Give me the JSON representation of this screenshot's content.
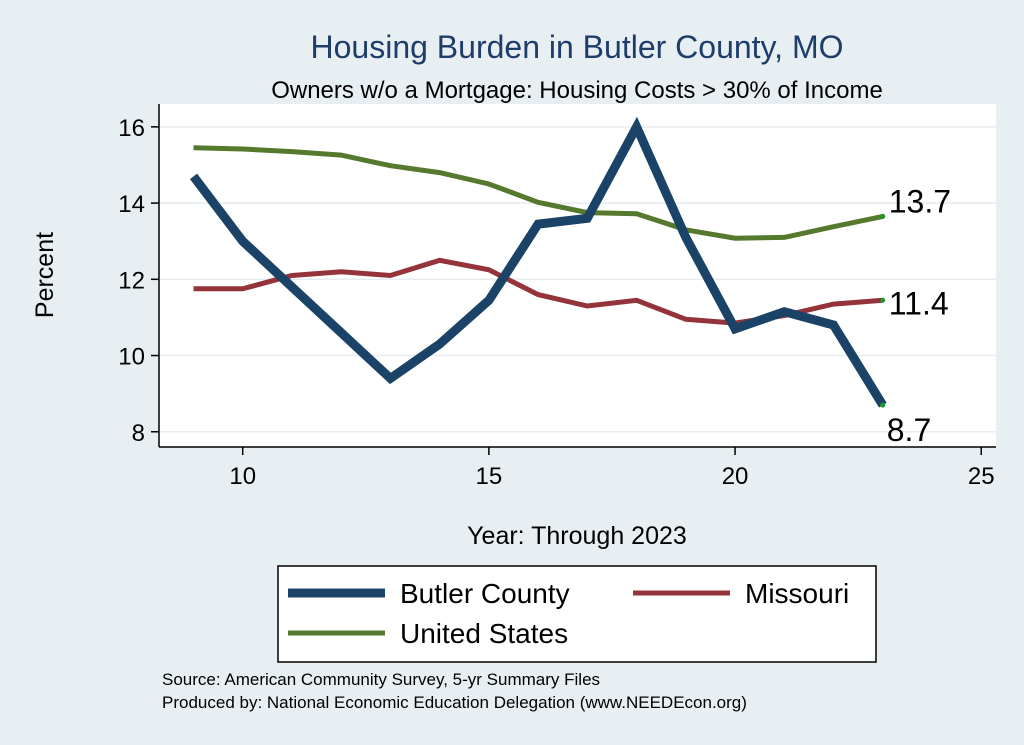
{
  "chart_data": {
    "type": "line",
    "title": "Housing Burden in Butler County, MO",
    "subtitle": "Owners w/o a Mortgage: Housing Costs > 30% of Income",
    "xlabel": "Year: Through 2023",
    "ylabel": "Percent",
    "xlim": [
      8.3,
      25.3
    ],
    "ylim": [
      7.6,
      16.6
    ],
    "xticks": [
      10,
      15,
      20,
      25
    ],
    "yticks": [
      8,
      10,
      12,
      14,
      16
    ],
    "grid": true,
    "x": [
      9,
      10,
      11,
      12,
      13,
      14,
      15,
      16,
      17,
      18,
      19,
      20,
      21,
      22,
      23
    ],
    "series": [
      {
        "name": "Butler County",
        "color": "#1b4368",
        "width": 9,
        "values": [
          14.7,
          13.0,
          11.8,
          10.6,
          9.4,
          10.3,
          11.45,
          13.45,
          13.6,
          16.0,
          13.1,
          10.7,
          11.15,
          10.8,
          8.7
        ],
        "end_label": "8.7"
      },
      {
        "name": "Missouri",
        "color": "#943339",
        "width": 5,
        "values": [
          11.75,
          11.75,
          12.1,
          12.2,
          12.1,
          12.5,
          12.25,
          11.6,
          11.3,
          11.45,
          10.95,
          10.85,
          11.05,
          11.35,
          11.45
        ],
        "end_label": "11.4"
      },
      {
        "name": "United States",
        "color": "#557a2d",
        "width": 5,
        "values": [
          15.45,
          15.42,
          15.35,
          15.26,
          14.98,
          14.8,
          14.5,
          14.02,
          13.75,
          13.72,
          13.3,
          13.08,
          13.1,
          13.38,
          13.65
        ],
        "end_label": "13.7"
      }
    ],
    "legend": {
      "placement": "bottom"
    }
  },
  "source": {
    "line1": "Source: American Community Survey, 5-yr Summary Files",
    "line2": "Produced by: National Economic Education Delegation (www.NEEDEcon.org)"
  }
}
